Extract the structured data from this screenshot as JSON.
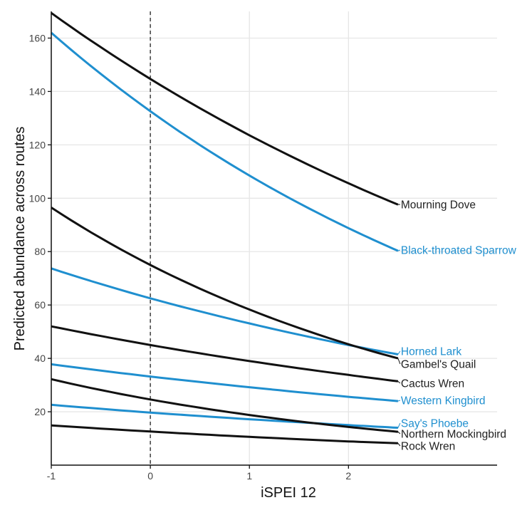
{
  "chart_data": {
    "type": "line",
    "title": "",
    "xlabel": "iSPEI 12",
    "ylabel": "Predicted abundance across routes",
    "xlim": [
      -1,
      3.5
    ],
    "ylim": [
      0,
      170
    ],
    "xticks": [
      "-1",
      "0",
      "1",
      "2"
    ],
    "yticks": [
      "20",
      "40",
      "60",
      "80",
      "100",
      "120",
      "140",
      "160"
    ],
    "grid": true,
    "reference_line": {
      "x": 0,
      "style": "dashed"
    },
    "x": [
      -1,
      0,
      1,
      2,
      2.5
    ],
    "series": [
      {
        "name": "Mourning Dove",
        "color": "#111111",
        "values": [
          169.4,
          144.7,
          123.6,
          105.6,
          97.6
        ]
      },
      {
        "name": "Black-throated Sparrow",
        "color": "#1f8fcf",
        "values": [
          162,
          132.6,
          108.5,
          88.8,
          80.3
        ]
      },
      {
        "name": "Horned Lark",
        "color": "#1f8fcf",
        "values": [
          73.7,
          62.5,
          53.1,
          45.0,
          41.5
        ]
      },
      {
        "name": "Gambel's Quail",
        "color": "#111111",
        "values": [
          96.5,
          75.0,
          58.3,
          45.3,
          40.0
        ]
      },
      {
        "name": "Cactus Wren",
        "color": "#111111",
        "values": [
          52,
          45.0,
          39.0,
          33.8,
          31.4
        ]
      },
      {
        "name": "Western Kingbird",
        "color": "#1f8fcf",
        "values": [
          37.8,
          33.2,
          29.2,
          25.6,
          24.0
        ]
      },
      {
        "name": "Say's Phoebe",
        "color": "#1f8fcf",
        "values": [
          22.6,
          19.7,
          17.2,
          15.0,
          14.0
        ]
      },
      {
        "name": "Northern Mockingbird",
        "color": "#111111",
        "values": [
          32.2,
          24.6,
          18.8,
          14.3,
          12.5
        ]
      },
      {
        "name": "Rock Wren",
        "color": "#111111",
        "values": [
          14.9,
          12.6,
          10.6,
          8.9,
          8.2
        ]
      }
    ]
  }
}
